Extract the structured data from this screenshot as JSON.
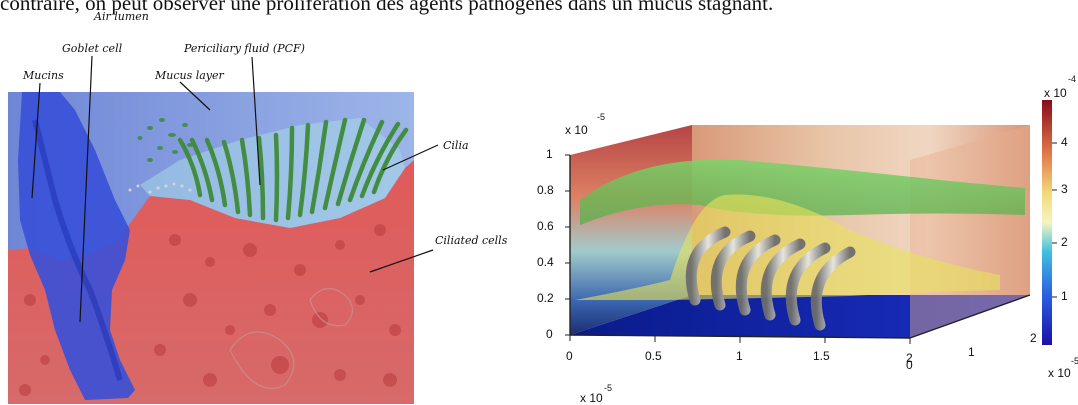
{
  "header": {
    "text": "contraire, on peut observer une prolifération des agents pathogènes dans un mucus stagnant."
  },
  "left_figure": {
    "labels": {
      "air_lumen": "Air lumen",
      "goblet_cell": "Goblet cell",
      "pcf": "Periciliary fluid (PCF)",
      "mucins": "Mucins",
      "mucus_layer": "Mucus layer",
      "cilia": "Cilia",
      "ciliated_cells": "Ciliated cells"
    }
  },
  "right_figure": {
    "y_axis": {
      "exponent": "x 10",
      "exponent_power": "-5",
      "ticks": [
        "1",
        "0.8",
        "0.6",
        "0.4",
        "0.2",
        "0"
      ]
    },
    "x_axis": {
      "ticks": [
        "0",
        "0.5",
        "1",
        "1.5",
        "2"
      ],
      "exponent": "x 10",
      "exponent_power": "-5"
    },
    "depth_axis": {
      "ticks": [
        "0",
        "1",
        "2"
      ],
      "exponent": "x 10",
      "exponent_power": "-5"
    },
    "colorbar": {
      "exponent": "x 10",
      "exponent_power": "-4",
      "ticks": [
        "4",
        "3",
        "2",
        "1"
      ],
      "colors": [
        "#8b0000",
        "#e31a1c",
        "#fdae61",
        "#ffff99",
        "#00bfff",
        "#1e40ff",
        "#00008b"
      ]
    }
  }
}
